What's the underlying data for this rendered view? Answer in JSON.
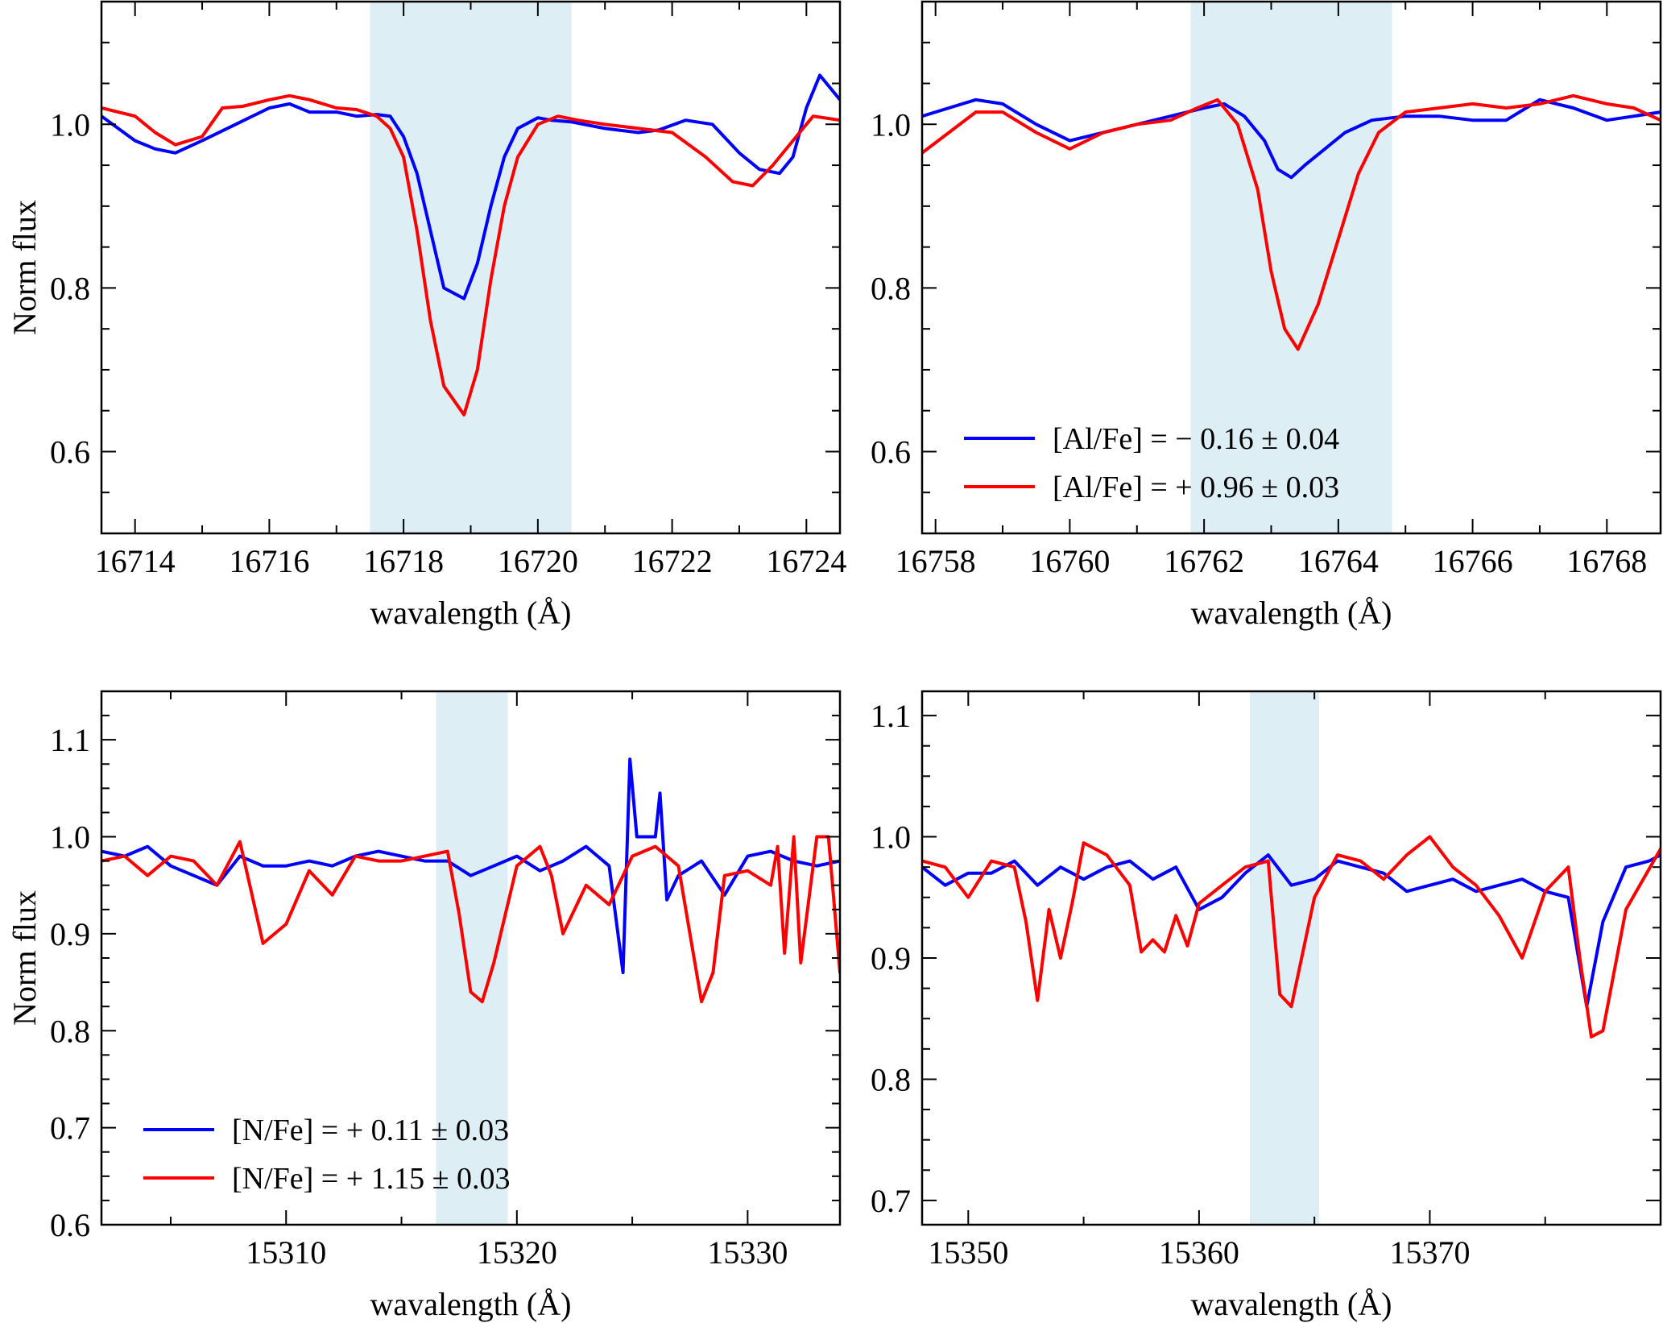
{
  "chart_data": [
    {
      "type": "line",
      "xlabel": "wavalength (Å)",
      "ylabel": "Norm flux",
      "xlim": [
        16713.5,
        16724.5
      ],
      "ylim": [
        0.5,
        1.15
      ],
      "xticks": [
        16714,
        16716,
        16718,
        16720,
        16722,
        16724
      ],
      "yticks": [
        0.6,
        0.8,
        1.0
      ],
      "xtick_labels": [
        "16714",
        "16716",
        "16718",
        "16720",
        "16722",
        "16724"
      ],
      "ytick_labels": [
        "0.6",
        "0.8",
        "1.0"
      ],
      "shaded_band": [
        16717.5,
        16720.5
      ],
      "legend": null,
      "series": [
        {
          "name": "blue",
          "color": "#0000ff",
          "x": [
            16713.5,
            16714,
            16714.3,
            16714.6,
            16715,
            16715.5,
            16716,
            16716.3,
            16716.6,
            16717,
            16717.3,
            16717.6,
            16717.8,
            16718,
            16718.2,
            16718.4,
            16718.6,
            16718.9,
            16719.1,
            16719.3,
            16719.5,
            16719.7,
            16720,
            16720.2,
            16720.5,
            16721,
            16721.5,
            16721.8,
            16722.2,
            16722.6,
            16723,
            16723.3,
            16723.6,
            16723.8,
            16724,
            16724.2,
            16724.5
          ],
          "y": [
            1.01,
            0.98,
            0.97,
            0.965,
            0.98,
            1.0,
            1.02,
            1.025,
            1.015,
            1.015,
            1.01,
            1.012,
            1.01,
            0.985,
            0.94,
            0.87,
            0.8,
            0.787,
            0.83,
            0.9,
            0.96,
            0.995,
            1.008,
            1.005,
            1.003,
            0.995,
            0.99,
            0.993,
            1.005,
            1.0,
            0.965,
            0.945,
            0.94,
            0.96,
            1.02,
            1.06,
            1.03
          ]
        },
        {
          "name": "red",
          "color": "#ff0000",
          "x": [
            16713.5,
            16714,
            16714.3,
            16714.6,
            16715,
            16715.3,
            16715.6,
            16716,
            16716.3,
            16716.6,
            16717,
            16717.3,
            16717.6,
            16717.8,
            16718,
            16718.2,
            16718.4,
            16718.6,
            16718.9,
            16719.1,
            16719.3,
            16719.5,
            16719.7,
            16720,
            16720.3,
            16720.6,
            16721,
            16721.5,
            16722,
            16722.5,
            16722.9,
            16723.2,
            16723.5,
            16723.8,
            16724.1,
            16724.5
          ],
          "y": [
            1.02,
            1.01,
            0.99,
            0.975,
            0.985,
            1.02,
            1.022,
            1.03,
            1.035,
            1.03,
            1.02,
            1.018,
            1.01,
            0.995,
            0.96,
            0.87,
            0.76,
            0.68,
            0.645,
            0.7,
            0.81,
            0.9,
            0.96,
            1.0,
            1.01,
            1.005,
            1.0,
            0.995,
            0.99,
            0.96,
            0.93,
            0.925,
            0.95,
            0.98,
            1.01,
            1.005
          ]
        }
      ]
    },
    {
      "type": "line",
      "xlabel": "wavalength (Å)",
      "ylabel": "",
      "xlim": [
        16757.8,
        16768.8
      ],
      "ylim": [
        0.5,
        1.15
      ],
      "xticks": [
        16758,
        16760,
        16762,
        16764,
        16766,
        16768
      ],
      "yticks": [
        0.6,
        0.8,
        1.0
      ],
      "xtick_labels": [
        "16758",
        "16760",
        "16762",
        "16764",
        "16766",
        "16768"
      ],
      "ytick_labels": [
        "0.6",
        "0.8",
        "1.0"
      ],
      "shaded_band": [
        16761.8,
        16764.8
      ],
      "legend": {
        "position": "lower-left",
        "entries": [
          {
            "label": "[Al/Fe] = − 0.16 ± 0.04",
            "color": "#0000ff"
          },
          {
            "label": "[Al/Fe] = + 0.96 ± 0.03",
            "color": "#ff0000"
          }
        ]
      },
      "series": [
        {
          "name": "blue",
          "color": "#0000ff",
          "x": [
            16757.8,
            16758.2,
            16758.6,
            16759,
            16759.5,
            16760,
            16760.5,
            16761,
            16761.5,
            16762,
            16762.3,
            16762.6,
            16762.9,
            16763.1,
            16763.3,
            16763.5,
            16763.8,
            16764.1,
            16764.5,
            16765,
            16765.5,
            16766,
            16766.5,
            16767,
            16767.5,
            16768,
            16768.4,
            16768.8
          ],
          "y": [
            1.01,
            1.02,
            1.03,
            1.025,
            1.0,
            0.98,
            0.99,
            1.0,
            1.01,
            1.02,
            1.025,
            1.01,
            0.98,
            0.945,
            0.935,
            0.95,
            0.97,
            0.99,
            1.005,
            1.01,
            1.01,
            1.005,
            1.005,
            1.03,
            1.02,
            1.005,
            1.01,
            1.015
          ]
        },
        {
          "name": "red",
          "color": "#ff0000",
          "x": [
            16757.8,
            16758.2,
            16758.6,
            16759,
            16759.5,
            16760,
            16760.5,
            16761,
            16761.5,
            16761.9,
            16762.2,
            16762.5,
            16762.8,
            16763,
            16763.2,
            16763.4,
            16763.7,
            16764,
            16764.3,
            16764.6,
            16765,
            16765.5,
            16766,
            16766.5,
            16767,
            16767.5,
            16768,
            16768.4,
            16768.8
          ],
          "y": [
            0.965,
            0.99,
            1.015,
            1.015,
            0.99,
            0.97,
            0.99,
            1.0,
            1.005,
            1.02,
            1.03,
            1.0,
            0.92,
            0.82,
            0.75,
            0.725,
            0.78,
            0.86,
            0.94,
            0.99,
            1.015,
            1.02,
            1.025,
            1.02,
            1.025,
            1.035,
            1.025,
            1.02,
            1.005
          ]
        }
      ]
    },
    {
      "type": "line",
      "xlabel": "wavalength (Å)",
      "ylabel": "Norm flux",
      "xlim": [
        15302,
        15334
      ],
      "ylim": [
        0.6,
        1.15
      ],
      "xticks": [
        15310,
        15320,
        15330
      ],
      "yticks": [
        0.6,
        0.7,
        0.8,
        0.9,
        1.0,
        1.1
      ],
      "xtick_labels": [
        "15310",
        "15320",
        "15330"
      ],
      "ytick_labels": [
        "0.6",
        "0.7",
        "0.8",
        "0.9",
        "1.0",
        "1.1"
      ],
      "shaded_band": [
        15316.5,
        15319.6
      ],
      "legend": {
        "position": "lower-left",
        "entries": [
          {
            "label": "[N/Fe] = + 0.11 ± 0.03",
            "color": "#0000ff"
          },
          {
            "label": "[N/Fe] = + 1.15 ± 0.03",
            "color": "#ff0000"
          }
        ]
      },
      "series": [
        {
          "name": "blue",
          "color": "#0000ff",
          "x": [
            15302,
            15303,
            15304,
            15305,
            15306,
            15307,
            15308,
            15309,
            15310,
            15311,
            15312,
            15313,
            15314,
            15315,
            15316,
            15317,
            15318,
            15319,
            15320,
            15321,
            15322,
            15323,
            15324,
            15324.6,
            15324.9,
            15325.2,
            15326,
            15326.2,
            15326.5,
            15327,
            15328,
            15329,
            15330,
            15331,
            15332,
            15333,
            15334
          ],
          "y": [
            0.985,
            0.98,
            0.99,
            0.97,
            0.96,
            0.95,
            0.98,
            0.97,
            0.97,
            0.975,
            0.97,
            0.98,
            0.985,
            0.98,
            0.975,
            0.975,
            0.96,
            0.97,
            0.98,
            0.965,
            0.975,
            0.99,
            0.97,
            0.86,
            1.08,
            1.0,
            1.0,
            1.045,
            0.935,
            0.96,
            0.975,
            0.94,
            0.98,
            0.985,
            0.975,
            0.97,
            0.975
          ]
        },
        {
          "name": "red",
          "color": "#ff0000",
          "x": [
            15302,
            15303,
            15304,
            15305,
            15306,
            15307,
            15308,
            15309,
            15310,
            15311,
            15312,
            15313,
            15314,
            15315,
            15316,
            15317,
            15317.5,
            15318,
            15318.5,
            15319,
            15320,
            15321,
            15321.5,
            15322,
            15323,
            15324,
            15325,
            15326,
            15327,
            15327.5,
            15328,
            15328.5,
            15329,
            15330,
            15331,
            15331.3,
            15331.6,
            15332,
            15332.3,
            15333,
            15333.5,
            15334
          ],
          "y": [
            0.975,
            0.98,
            0.96,
            0.98,
            0.975,
            0.95,
            0.995,
            0.89,
            0.91,
            0.965,
            0.94,
            0.98,
            0.975,
            0.975,
            0.98,
            0.985,
            0.92,
            0.84,
            0.83,
            0.87,
            0.97,
            0.99,
            0.96,
            0.9,
            0.95,
            0.93,
            0.98,
            0.99,
            0.97,
            0.9,
            0.83,
            0.86,
            0.96,
            0.965,
            0.95,
            0.99,
            0.88,
            1.0,
            0.87,
            1.0,
            1.0,
            0.86
          ]
        }
      ]
    },
    {
      "type": "line",
      "xlabel": "wavalength (Å)",
      "ylabel": "",
      "xlim": [
        15348,
        15380
      ],
      "ylim": [
        0.68,
        1.12
      ],
      "xticks": [
        15350,
        15360,
        15370
      ],
      "yticks": [
        0.7,
        0.8,
        0.9,
        1.0,
        1.1
      ],
      "xtick_labels": [
        "15350",
        "15360",
        "15370"
      ],
      "ytick_labels": [
        "0.7",
        "0.8",
        "0.9",
        "1.0",
        "1.1"
      ],
      "shaded_band": [
        15362.2,
        15365.2
      ],
      "legend": null,
      "series": [
        {
          "name": "blue",
          "color": "#0000ff",
          "x": [
            15348,
            15349,
            15350,
            15351,
            15352,
            15353,
            15354,
            15355,
            15356,
            15357,
            15358,
            15359,
            15360,
            15361,
            15362,
            15363,
            15364,
            15365,
            15366,
            15367,
            15368,
            15369,
            15370,
            15371,
            15372,
            15373,
            15374,
            15375,
            15376,
            15376.8,
            15377.5,
            15378.5,
            15379.5,
            15380
          ],
          "y": [
            0.975,
            0.96,
            0.97,
            0.97,
            0.98,
            0.96,
            0.975,
            0.965,
            0.975,
            0.98,
            0.965,
            0.975,
            0.94,
            0.95,
            0.97,
            0.985,
            0.96,
            0.965,
            0.98,
            0.975,
            0.97,
            0.955,
            0.96,
            0.965,
            0.955,
            0.96,
            0.965,
            0.955,
            0.95,
            0.86,
            0.93,
            0.975,
            0.98,
            0.985
          ]
        },
        {
          "name": "red",
          "color": "#ff0000",
          "x": [
            15348,
            15349,
            15350,
            15351,
            15352,
            15352.5,
            15353,
            15353.5,
            15354,
            15354.5,
            15355,
            15356,
            15357,
            15357.5,
            15358,
            15358.5,
            15359,
            15359.5,
            15360,
            15361,
            15362,
            15363,
            15363.5,
            15364,
            15365,
            15366,
            15367,
            15368,
            15369,
            15370,
            15371,
            15372,
            15373,
            15374,
            15375,
            15376,
            15376.5,
            15377,
            15377.5,
            15378.5,
            15380
          ],
          "y": [
            0.98,
            0.975,
            0.95,
            0.98,
            0.975,
            0.93,
            0.865,
            0.94,
            0.9,
            0.945,
            0.995,
            0.985,
            0.96,
            0.905,
            0.915,
            0.905,
            0.935,
            0.91,
            0.945,
            0.96,
            0.975,
            0.98,
            0.87,
            0.86,
            0.95,
            0.985,
            0.98,
            0.965,
            0.985,
            1.0,
            0.975,
            0.96,
            0.935,
            0.9,
            0.955,
            0.975,
            0.9,
            0.835,
            0.84,
            0.94,
            0.99
          ]
        }
      ]
    }
  ]
}
